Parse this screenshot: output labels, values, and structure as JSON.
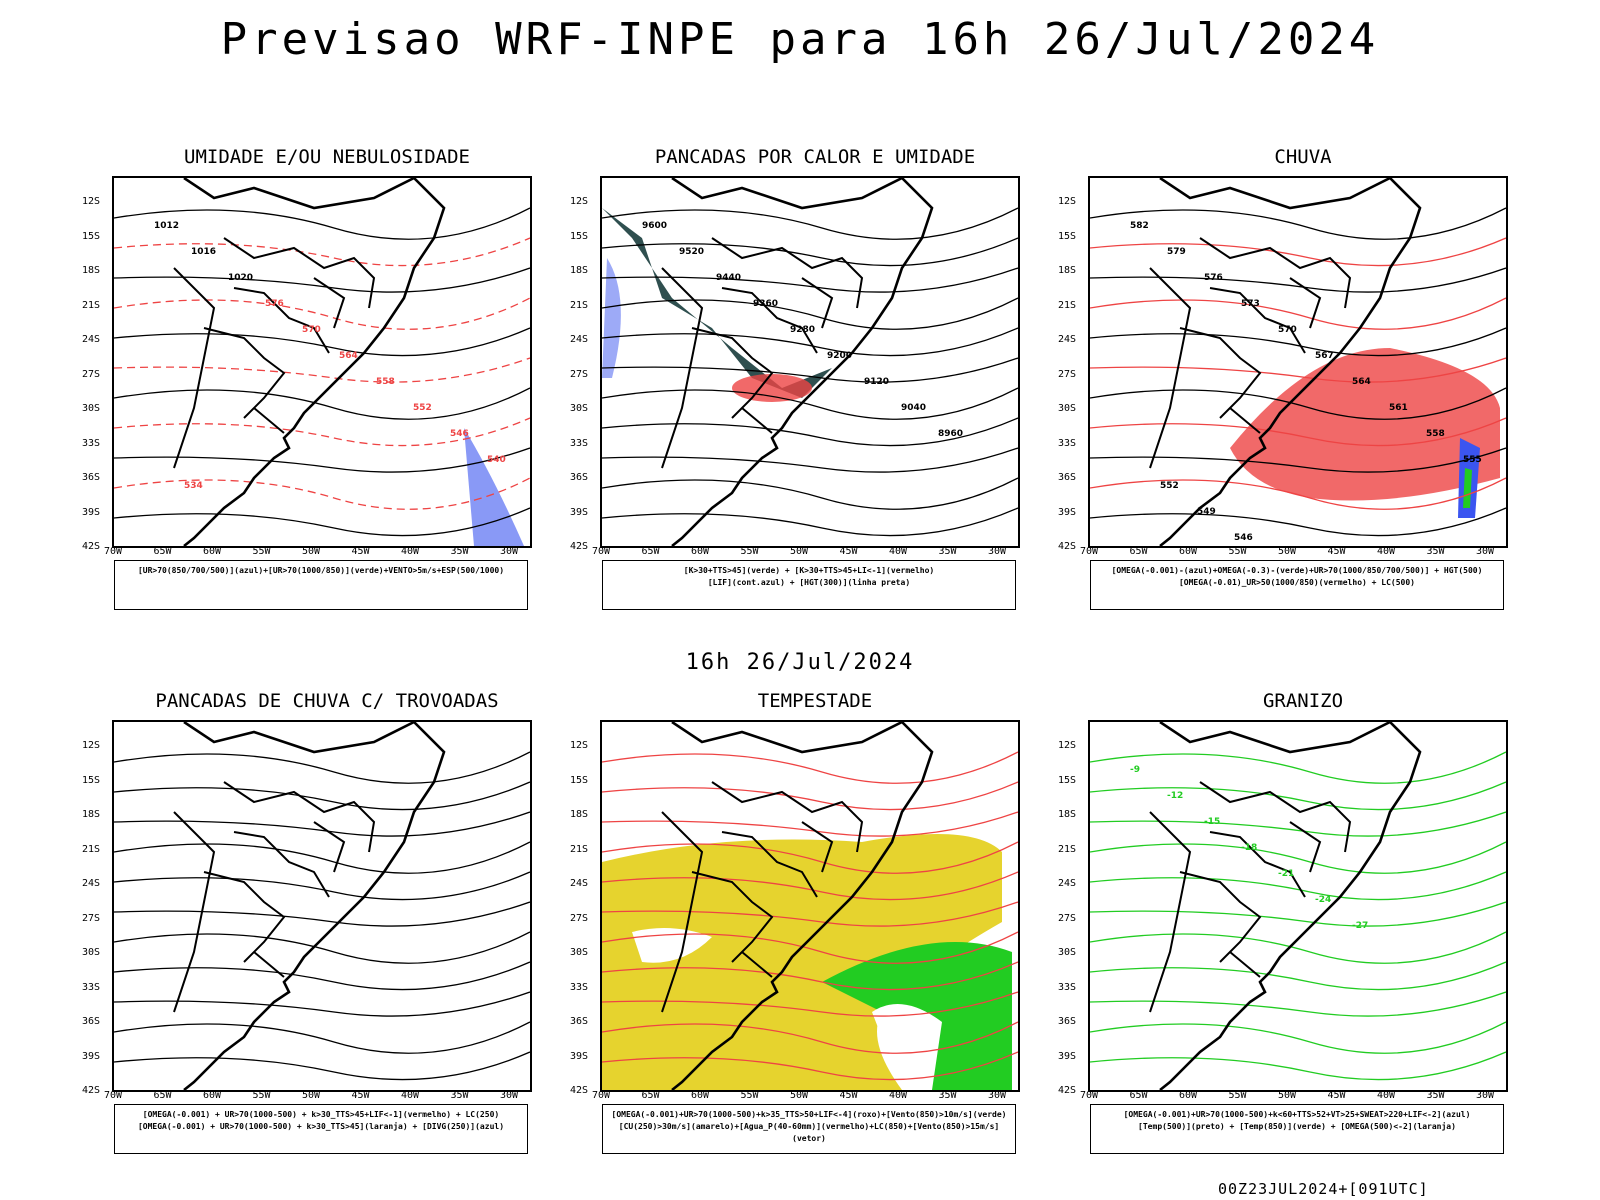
{
  "header": {
    "title": "Previsao WRF-INPE  para 16h 26/Jul/2024",
    "subtitle": "16h 26/Jul/2024",
    "footer": "00Z23JUL2024+[091UTC]"
  },
  "axes": {
    "lat_labels": [
      "12S",
      "15S",
      "18S",
      "21S",
      "24S",
      "27S",
      "30S",
      "33S",
      "36S",
      "39S",
      "42S"
    ],
    "lon_labels": [
      "70W",
      "65W",
      "60W",
      "55W",
      "50W",
      "45W",
      "40W",
      "35W",
      "30W"
    ]
  },
  "panels": [
    {
      "title": "UMIDADE E/OU NEBULOSIDADE",
      "legend": [
        "[UR>70(850/700/500)](azul)+[UR>70(1000/850)](verde)+VENTO>5m/s+ESP(500/1000)"
      ],
      "labels": [
        "1012",
        "1016",
        "1020",
        "576",
        "570",
        "564",
        "558",
        "552",
        "546",
        "540",
        "534"
      ]
    },
    {
      "title": "PANCADAS POR CALOR E UMIDADE",
      "legend": [
        "[K>30+TTS>45](verde) + [K>30+TTS>45+LI<-1](vermelho)",
        "[LIF](cont.azul) + [HGT(300)](linha preta)"
      ],
      "labels": [
        "9600",
        "9520",
        "9440",
        "9360",
        "9280",
        "9200",
        "9120",
        "9040",
        "8960"
      ]
    },
    {
      "title": "CHUVA",
      "legend": [
        "[OMEGA(-0.001)-(azul)+OMEGA(-0.3)-(verde)+UR>70(1000/850/700/500)] + HGT(500)",
        "[OMEGA(-0.01)_UR>50(1000/850)(vermelho) + LC(500)"
      ],
      "labels": [
        "582",
        "579",
        "576",
        "573",
        "570",
        "567",
        "564",
        "561",
        "558",
        "555",
        "552",
        "549",
        "546"
      ]
    },
    {
      "title": "PANCADAS DE CHUVA C/ TROVOADAS",
      "legend": [
        "[OMEGA(-0.001) + UR>70(1000-500) + k>30_TTS>45+LIF<-1](vermelho) + LC(250)",
        "[OMEGA(-0.001) + UR>70(1000-500) + k>30_TTS>45](laranja) + [DIVG(250)](azul)"
      ],
      "labels": []
    },
    {
      "title": "TEMPESTADE",
      "legend": [
        "[OMEGA(-0.001)+UR>70(1000-500)+k>35_TTS>50+LIF<-4](roxo)+[Vento(850)>10m/s](verde)",
        "[CU(250)>30m/s](amarelo)+[Agua_P(40-60mm)](vermelho)+LC(850)+[Vento(850)>15m/s](vetor)"
      ],
      "labels": []
    },
    {
      "title": "GRANIZO",
      "legend": [
        "[OMEGA(-0.001)+UR>70(1000-500)+k<60+TTS>52+VT>25+SWEAT>220+LIF<-2](azul)",
        "[Temp(500)](preto) + [Temp(850)](verde) + [OMEGA(500)<-2](laranja)"
      ],
      "labels": [
        "-9",
        "-12",
        "-15",
        "-18",
        "-21",
        "-24",
        "-27"
      ]
    }
  ],
  "colors": {
    "blue": "#3b55f0",
    "green": "#22cc22",
    "red": "#ee4444",
    "yellow": "#e6d32e",
    "darkteal": "#2f4f4f",
    "orange": "#e88a2a"
  }
}
